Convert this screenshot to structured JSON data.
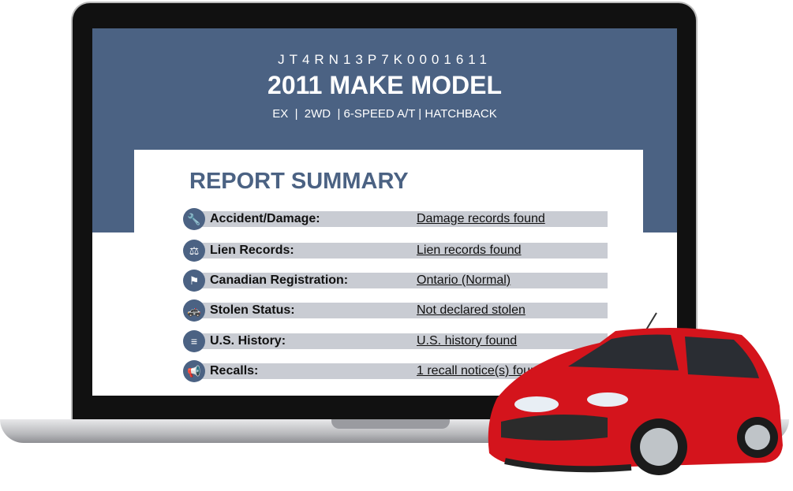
{
  "report": {
    "vin": "JT4RN13P7K0001611",
    "vehicle_title": "2011 MAKE MODEL",
    "vehicle_specs": "EX  |  2WD  | 6-SPEED A/T | HATCHBACK",
    "summary_title": "REPORT SUMMARY",
    "rows": [
      {
        "icon": "wrench-icon",
        "label": "Accident/Damage:",
        "value": "Damage records found"
      },
      {
        "icon": "gavel-icon",
        "label": "Lien Records:",
        "value": "Lien records found"
      },
      {
        "icon": "flag-icon",
        "label": "Canadian Registration:",
        "value": "Ontario (Normal)"
      },
      {
        "icon": "police-car-icon",
        "label": "Stolen Status:",
        "value": "Not declared stolen"
      },
      {
        "icon": "us-flag-icon",
        "label": "U.S. History:",
        "value": "U.S. history found"
      },
      {
        "icon": "megaphone-icon",
        "label": "Recalls:",
        "value": "1 recall notice(s) found"
      }
    ]
  },
  "colors": {
    "header": "#4b6283",
    "row_bar": "#c9ccd3",
    "car": "#d4141c"
  }
}
